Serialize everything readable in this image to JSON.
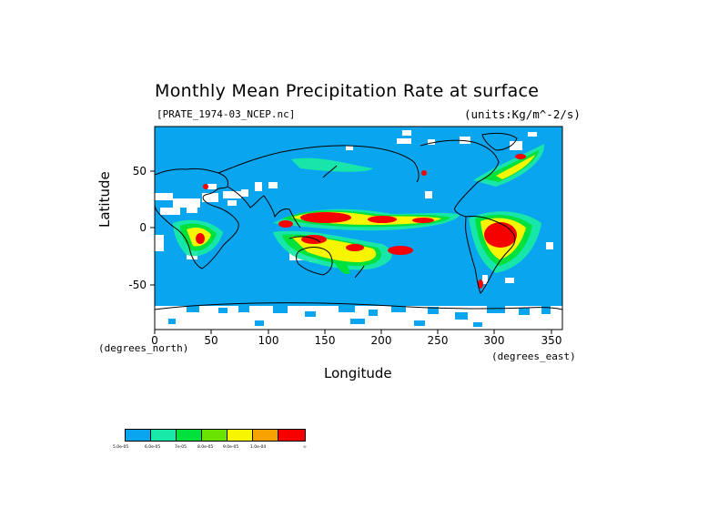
{
  "title": "Monthly Mean Precipitation Rate at surface",
  "file_label": "[PRATE_1974-03_NCEP.nc]",
  "units_label": "(units:Kg/m^-2/s)",
  "x_axis": {
    "label": "Longitude",
    "unit_label": "(degrees_east)",
    "ticks": [
      "0",
      "50",
      "100",
      "150",
      "200",
      "250",
      "300",
      "350"
    ],
    "range": [
      0,
      360
    ]
  },
  "y_axis": {
    "label": "Latitude",
    "unit_label": "(degrees_north)",
    "ticks": [
      "50",
      "0",
      "-50"
    ],
    "range": [
      -90,
      90
    ]
  },
  "colors": {
    "ocean_fill": "#0aa5ef",
    "background": "#ffffff",
    "coastline": "#000000",
    "light_rain": "#18e9a6",
    "moderate_rain": "#00e13c",
    "green_yellow": "#6be300",
    "heavy_rain": "#f7f600",
    "very_heavy": "#f7a200",
    "extreme": "#f70000"
  },
  "colorbar": {
    "colors": [
      "#0aa5ef",
      "#18e9a6",
      "#00e13c",
      "#6be300",
      "#f7f600",
      "#f7a200",
      "#f70000"
    ],
    "labels": [
      "5.0e-05",
      "6.0e-05",
      "7e-05",
      "8.0e-05",
      "9.0e-05",
      "1.0e-04",
      "∞"
    ]
  },
  "chart_data": {
    "type": "heatmap",
    "title": "Monthly Mean Precipitation Rate at surface",
    "xlabel": "Longitude",
    "ylabel": "Latitude",
    "xlim": [
      0,
      360
    ],
    "ylim": [
      -90,
      90
    ],
    "levels": [
      "5.0e-05",
      "6.0e-05",
      "7e-05",
      "8.0e-05",
      "9.0e-05",
      "1.0e-04"
    ],
    "high_precip_regions": [
      {
        "lon": [
          130,
          175
        ],
        "lat": [
          2,
          12
        ],
        "level": "1.0e-04"
      },
      {
        "lon": [
          195,
          225
        ],
        "lat": [
          4,
          10
        ],
        "level": "1.0e-04"
      },
      {
        "lon": [
          295,
          330
        ],
        "lat": [
          -25,
          3
        ],
        "level": "1.0e-04"
      },
      {
        "lon": [
          185,
          215
        ],
        "lat": [
          -25,
          -10
        ],
        "level": "1.0e-04"
      },
      {
        "lon": [
          150,
          175
        ],
        "lat": [
          -20,
          -8
        ],
        "level": "1.0e-04"
      },
      {
        "lon": [
          25,
          38
        ],
        "lat": [
          -20,
          -2
        ],
        "level": "1.0e-04"
      }
    ]
  }
}
